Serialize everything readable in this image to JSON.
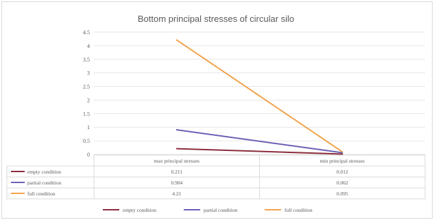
{
  "chart_data": {
    "type": "line",
    "title": "Bottom principal stresses of circular silo",
    "xlabel": "",
    "ylabel": "",
    "categories": [
      "max principal stresses",
      "min principal stresses"
    ],
    "ylim": [
      0,
      4.5
    ],
    "yticks": [
      "0",
      "0.5",
      "1",
      "1.5",
      "2",
      "2.5",
      "3",
      "3.5",
      "4",
      "4.5"
    ],
    "grid": true,
    "legend_position": "bottom",
    "data_table": true,
    "series": [
      {
        "name": "empty condition",
        "values": [
          0.211,
          0.012
        ],
        "color": "#8b2a3a"
      },
      {
        "name": "partial condition",
        "values": [
          0.904,
          0.062
        ],
        "color": "#6a5fb5"
      },
      {
        "name": "full condition",
        "values": [
          4.21,
          0.095
        ],
        "color": "#f2a24a"
      }
    ]
  }
}
